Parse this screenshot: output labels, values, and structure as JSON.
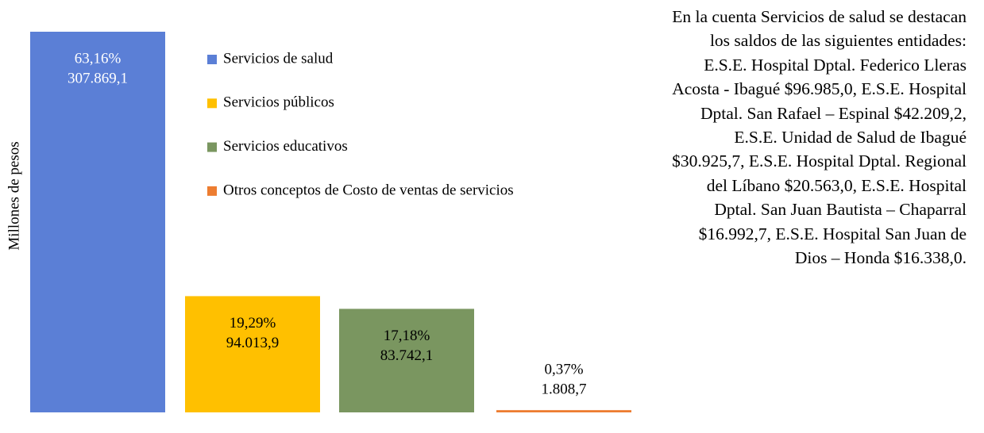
{
  "chart_data": {
    "type": "bar",
    "y_label": "Millones  de pesos",
    "categories": [
      "Servicios de salud",
      "Servicios públicos",
      "Servicios educativos",
      "Otros conceptos de Costo de ventas de servicios"
    ],
    "series": [
      {
        "name": "Costo de ventas de servicios",
        "colors": [
          "#5b7fd6",
          "#ffc000",
          "#7a9660",
          "#ed7d31"
        ],
        "values": [
          307869.1,
          94013.9,
          83742.1,
          1808.7
        ],
        "value_labels": [
          "307.869,1",
          "94.013,9",
          "83.742,1",
          "1.808,7"
        ],
        "percentages": [
          63.16,
          19.29,
          17.18,
          0.37
        ],
        "percentage_labels": [
          "63,16%",
          "19,29%",
          "17,18%",
          "0,37%"
        ]
      }
    ]
  },
  "note": "En la cuenta Servicios de salud se destacan los saldos de las siguientes entidades: E.S.E. Hospital Dptal. Federico Lleras Acosta - Ibagué $96.985,0, E.S.E. Hospital Dptal. San Rafael – Espinal $42.209,2, E.S.E. Unidad de Salud de Ibagué $30.925,7, E.S.E. Hospital Dptal. Regional del Líbano $20.563,0, E.S.E. Hospital Dptal. San Juan Bautista – Chaparral $16.992,7, E.S.E. Hospital San Juan de Dios – Honda $16.338,0."
}
